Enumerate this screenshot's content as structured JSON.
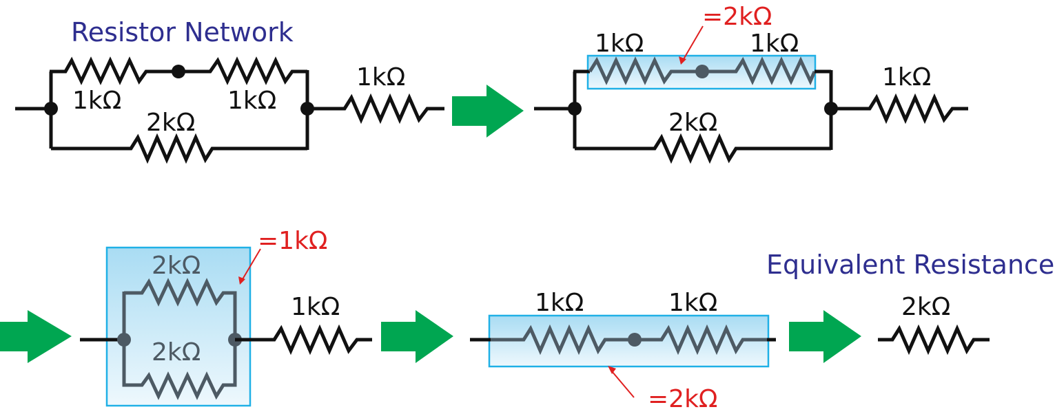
{
  "title": "Resistor Network",
  "result_title": "Equivalent Resistance",
  "step1": {
    "top_left_label": "1kΩ",
    "top_right_label": "1kΩ",
    "bottom_label": "2kΩ",
    "series_label": "1kΩ"
  },
  "step2": {
    "top_left_label": "1kΩ",
    "top_right_label": "1kΩ",
    "sum_annotation": "=2kΩ",
    "bottom_label": "2kΩ",
    "series_label": "1kΩ"
  },
  "step3": {
    "top_label": "2kΩ",
    "bottom_label": "2kΩ",
    "parallel_annotation": "=1kΩ",
    "series_label": "1kΩ"
  },
  "step4": {
    "left_label": "1kΩ",
    "right_label": "1kΩ",
    "sum_annotation": "=2kΩ"
  },
  "result": {
    "label": "2kΩ"
  },
  "colors": {
    "wire": "#111111",
    "highlight_wire": "#4d5a64",
    "highlight_fill": "#c9e9f7",
    "highlight_border": "#1fb0e6",
    "annotation": "#e02020",
    "title": "#2e2e8f",
    "arrow": "#00a651"
  }
}
